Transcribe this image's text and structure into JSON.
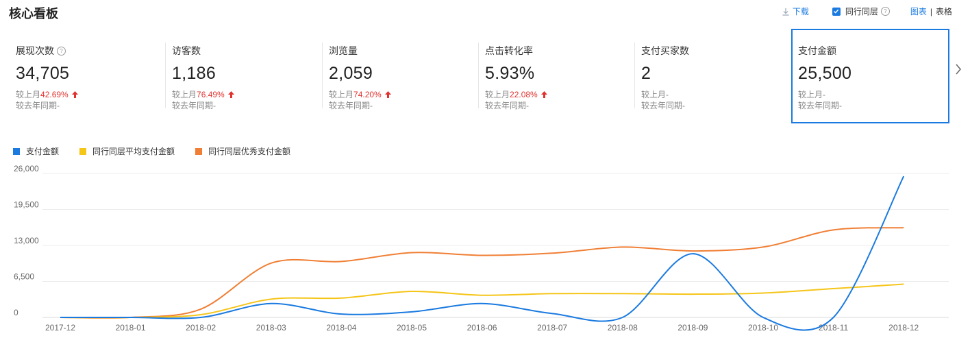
{
  "title": "核心看板",
  "toolbar": {
    "download_label": "下载",
    "peer_label": "同行同层",
    "peer_checked": true,
    "view_chart_label": "图表",
    "view_table_label": "表格"
  },
  "cards": [
    {
      "label": "展现次数",
      "value": "34,705",
      "mom_label": "较上月",
      "mom_pct": "42.69%",
      "mom_trend": "up",
      "yoy_label": "较去年同期-",
      "has_help": true
    },
    {
      "label": "访客数",
      "value": "1,186",
      "mom_label": "较上月",
      "mom_pct": "76.49%",
      "mom_trend": "up",
      "yoy_label": "较去年同期-"
    },
    {
      "label": "浏览量",
      "value": "2,059",
      "mom_label": "较上月",
      "mom_pct": "74.20%",
      "mom_trend": "up",
      "yoy_label": "较去年同期-"
    },
    {
      "label": "点击转化率",
      "value": "5.93%",
      "mom_label": "较上月",
      "mom_pct": "22.08%",
      "mom_trend": "up",
      "yoy_label": "较去年同期-"
    },
    {
      "label": "支付买家数",
      "value": "2",
      "mom_label": "较上月-",
      "mom_pct": "",
      "yoy_label": "较去年同期-"
    },
    {
      "label": "支付金额",
      "value": "25,500",
      "mom_label": "较上月-",
      "mom_pct": "",
      "yoy_label": "较去年同期-",
      "active": true
    }
  ],
  "colors": {
    "accent": "#1a7ae0",
    "increase": "#e0322e",
    "grid": "#ebebeb"
  },
  "chart_data": {
    "type": "line",
    "categories": [
      "2017-12",
      "2018-01",
      "2018-02",
      "2018-03",
      "2018-04",
      "2018-05",
      "2018-06",
      "2018-07",
      "2018-08",
      "2018-09",
      "2018-10",
      "2018-11",
      "2018-12"
    ],
    "yticks": [
      "26,000",
      "19,500",
      "13,000",
      "6,500",
      "0"
    ],
    "ylim": [
      0,
      26000
    ],
    "legend_position": "top-left",
    "series": [
      {
        "name": "支付金额",
        "color": "#1a7ae0",
        "values": [
          0,
          0,
          0,
          2500,
          600,
          1000,
          2500,
          700,
          0,
          11500,
          0,
          0,
          25500
        ]
      },
      {
        "name": "同行同层平均支付金额",
        "color": "#f5c518",
        "values": [
          0,
          0,
          500,
          3300,
          3500,
          4700,
          4000,
          4300,
          4300,
          4200,
          4400,
          5200,
          6000
        ]
      },
      {
        "name": "同行同层优秀支付金额",
        "color": "#f07f35",
        "values": [
          0,
          0,
          1500,
          9800,
          10100,
          11700,
          11200,
          11600,
          12700,
          12000,
          12700,
          15800,
          16200
        ]
      }
    ]
  }
}
